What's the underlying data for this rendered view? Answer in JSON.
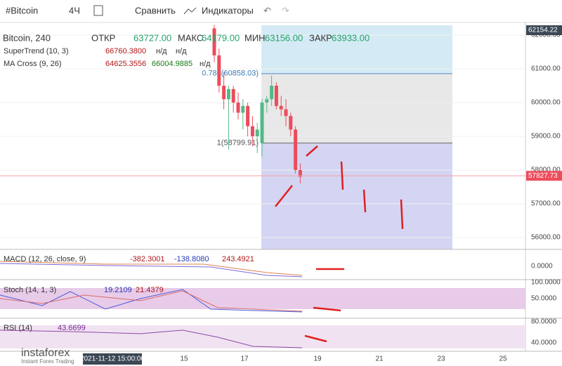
{
  "toolbar": {
    "symbol": "#Bitcoin",
    "interval": "4Ч",
    "compare": "Сравнить",
    "indicators": "Индикаторы"
  },
  "legend": {
    "symbol": "Bitcoin, 240",
    "open_label": "ОТКР",
    "open": "63727.00",
    "high_label": "МАКС",
    "high": "64179.00",
    "low_label": "МИН",
    "low": "63156.00",
    "close_label": "ЗАКР",
    "close": "63933.00"
  },
  "indicators": {
    "supertrend": {
      "name": "SuperTrend (10, 3)",
      "values": [
        "66760.3800",
        "н/д",
        "н/д"
      ]
    },
    "ma_cross": {
      "name": "MA Cross (9, 26)",
      "values": [
        "64625.3556",
        "66004.9885",
        "н/д"
      ]
    },
    "macd": {
      "name": "MACD (12, 26, close, 9)",
      "values": [
        "-382.3001",
        "-138.8080",
        "243.4921"
      ],
      "axis": [
        "0.0000"
      ]
    },
    "stoch": {
      "name": "Stoch (14, 1, 3)",
      "values": [
        "19.2109",
        "21.4379"
      ],
      "axis": [
        "100.0000",
        "50.0000"
      ]
    },
    "rsi": {
      "name": "RSI (14)",
      "values": [
        "43.6699"
      ],
      "axis": [
        "80.0000",
        "40.0000"
      ]
    }
  },
  "price_axis": {
    "ticks": [
      {
        "value": 62000,
        "label": "62000.00"
      },
      {
        "value": 61000,
        "label": "61000.00"
      },
      {
        "value": 60000,
        "label": "60000.00"
      },
      {
        "value": 59000,
        "label": "59000.00"
      },
      {
        "value": 58000,
        "label": "58000.00"
      },
      {
        "value": 57000,
        "label": "57000.00"
      },
      {
        "value": 56000,
        "label": "56000.00"
      }
    ],
    "high": {
      "value": 62154.22,
      "label": "62154.22"
    },
    "last": {
      "value": 57827.73,
      "label": "57827.73"
    }
  },
  "fib": [
    {
      "value": 60858.03,
      "label": "0.786(60858.03)"
    },
    {
      "value": 58799.91,
      "label": "1(58799.91)"
    }
  ],
  "candles": [
    {
      "o": 62200,
      "h": 62300,
      "l": 61200,
      "c": 61400
    },
    {
      "o": 61400,
      "h": 61600,
      "l": 60300,
      "c": 60500
    },
    {
      "o": 60500,
      "h": 60900,
      "l": 59800,
      "c": 60100
    },
    {
      "o": 60100,
      "h": 60500,
      "l": 58600,
      "c": 60400
    },
    {
      "o": 60400,
      "h": 60500,
      "l": 59700,
      "c": 60000
    },
    {
      "o": 60000,
      "h": 60300,
      "l": 59500,
      "c": 59700
    },
    {
      "o": 59700,
      "h": 60100,
      "l": 59200,
      "c": 59900
    },
    {
      "o": 59900,
      "h": 60000,
      "l": 59000,
      "c": 59300
    },
    {
      "o": 59300,
      "h": 59600,
      "l": 58700,
      "c": 59000
    },
    {
      "o": 59000,
      "h": 59400,
      "l": 58500,
      "c": 59200
    },
    {
      "o": 58800,
      "h": 60100,
      "l": 58400,
      "c": 60000
    },
    {
      "o": 60000,
      "h": 60200,
      "l": 59700,
      "c": 60100
    },
    {
      "o": 60100,
      "h": 60800,
      "l": 59900,
      "c": 60500
    },
    {
      "o": 60500,
      "h": 60600,
      "l": 59800,
      "c": 59900
    },
    {
      "o": 59900,
      "h": 60200,
      "l": 59600,
      "c": 59800
    },
    {
      "o": 59800,
      "h": 60100,
      "l": 59300,
      "c": 59600
    },
    {
      "o": 59600,
      "h": 59700,
      "l": 59000,
      "c": 59200
    },
    {
      "o": 59200,
      "h": 59300,
      "l": 57900,
      "c": 58000
    },
    {
      "o": 58000,
      "h": 58200,
      "l": 57600,
      "c": 57800
    }
  ],
  "time_axis": {
    "labels": [
      "15",
      "17",
      "19",
      "21",
      "23",
      "25"
    ],
    "cursor": "2021-11-12 15:00:00"
  },
  "logo": {
    "name": "instaforex",
    "tagline": "Instant Forex Trading"
  }
}
